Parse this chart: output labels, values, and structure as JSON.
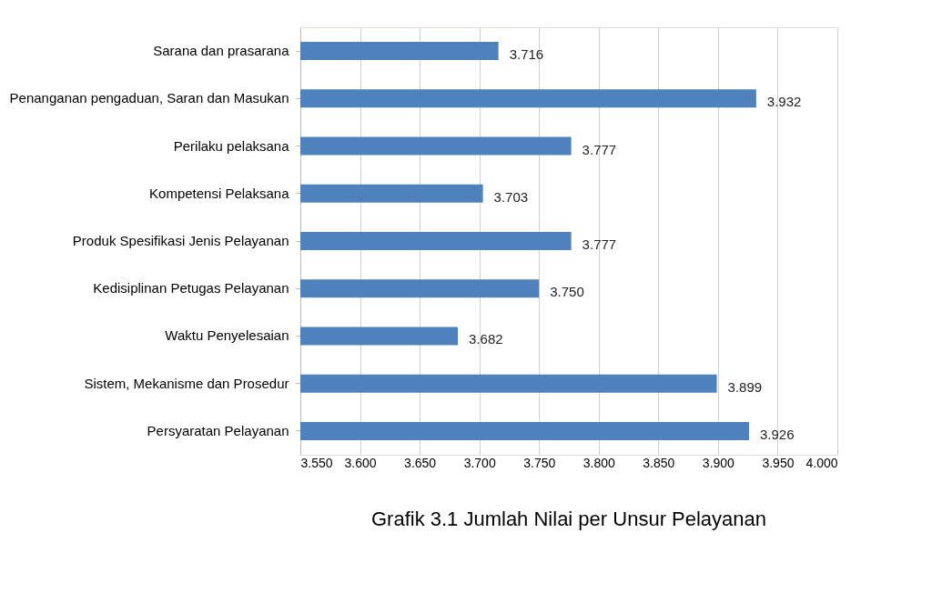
{
  "chart_data": {
    "type": "bar",
    "orientation": "horizontal",
    "title": "Grafik 3.1 Jumlah Nilai per Unsur Pelayanan",
    "categories": [
      "Sarana dan prasarana",
      "Penanganan pengaduan, Saran dan Masukan",
      "Perilaku pelaksana",
      "Kompetensi Pelaksana",
      "Produk Spesifikasi Jenis Pelayanan",
      "Kedisiplinan Petugas Pelayanan",
      "Waktu Penyelesaian",
      "Sistem, Mekanisme dan Prosedur",
      "Persyaratan Pelayanan"
    ],
    "values": [
      3.716,
      3.932,
      3.777,
      3.703,
      3.777,
      3.75,
      3.682,
      3.899,
      3.926
    ],
    "value_labels": [
      "3.716",
      "3.932",
      "3.777",
      "3.703",
      "3.777",
      "3.750",
      "3.682",
      "3.899",
      "3.926"
    ],
    "color": "#4f81bd",
    "xlim": [
      3.55,
      4.0
    ],
    "xticks": [
      {
        "value": 3.55,
        "label": "3.550"
      },
      {
        "value": 3.6,
        "label": "3.600"
      },
      {
        "value": 3.65,
        "label": "3.650"
      },
      {
        "value": 3.7,
        "label": "3.700"
      },
      {
        "value": 3.75,
        "label": "3.750"
      },
      {
        "value": 3.8,
        "label": "3.800"
      },
      {
        "value": 3.85,
        "label": "3.850"
      },
      {
        "value": 3.9,
        "label": "3.900"
      },
      {
        "value": 3.95,
        "label": "3.950"
      },
      {
        "value": 4.0,
        "label": "4.000"
      }
    ],
    "grid": "x"
  }
}
